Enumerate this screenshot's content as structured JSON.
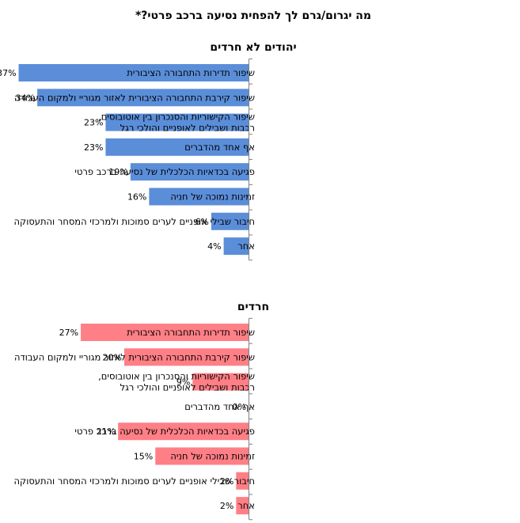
{
  "chart_data": {
    "title": "מה יגרום/גרם לך להפחית נסיעה ברכב פרטי?*",
    "type": "bar",
    "orientation": "horizontal",
    "value_format": "percent",
    "categories": [
      [
        "שיפור תדירות התחבורה הציבורית"
      ],
      [
        "שיפור קירבת התחבורה הציבורית לאזור מגוריי ולמקום העבודה"
      ],
      [
        "שיפור הקישוריות והסנכרון בין אוטובוסים,",
        "רכבות ושבילים לאופניים והולכי רגל"
      ],
      [
        "אף אחד מהדברים"
      ],
      [
        "פגיעה בכדאיות הכלכלית של נסיעה ברכב פרטי"
      ],
      [
        "זמינות נמוכה של חניה"
      ],
      [
        "חיבור שבילי אופניים לערים סמוכות ולמרכזי המסחר והתעסוקה"
      ],
      [
        "אחר"
      ]
    ],
    "panels": [
      {
        "title": "יהודים לא חרדים",
        "color": "#5B8ED9",
        "values": [
          37,
          34,
          23,
          23,
          19,
          16,
          6,
          4
        ],
        "xlim": [
          0,
          40
        ]
      },
      {
        "title": "חרדים",
        "color": "#FF7F86",
        "values": [
          27,
          20,
          9,
          0,
          21,
          15,
          2,
          2
        ],
        "xlim": [
          0,
          40
        ]
      }
    ]
  }
}
